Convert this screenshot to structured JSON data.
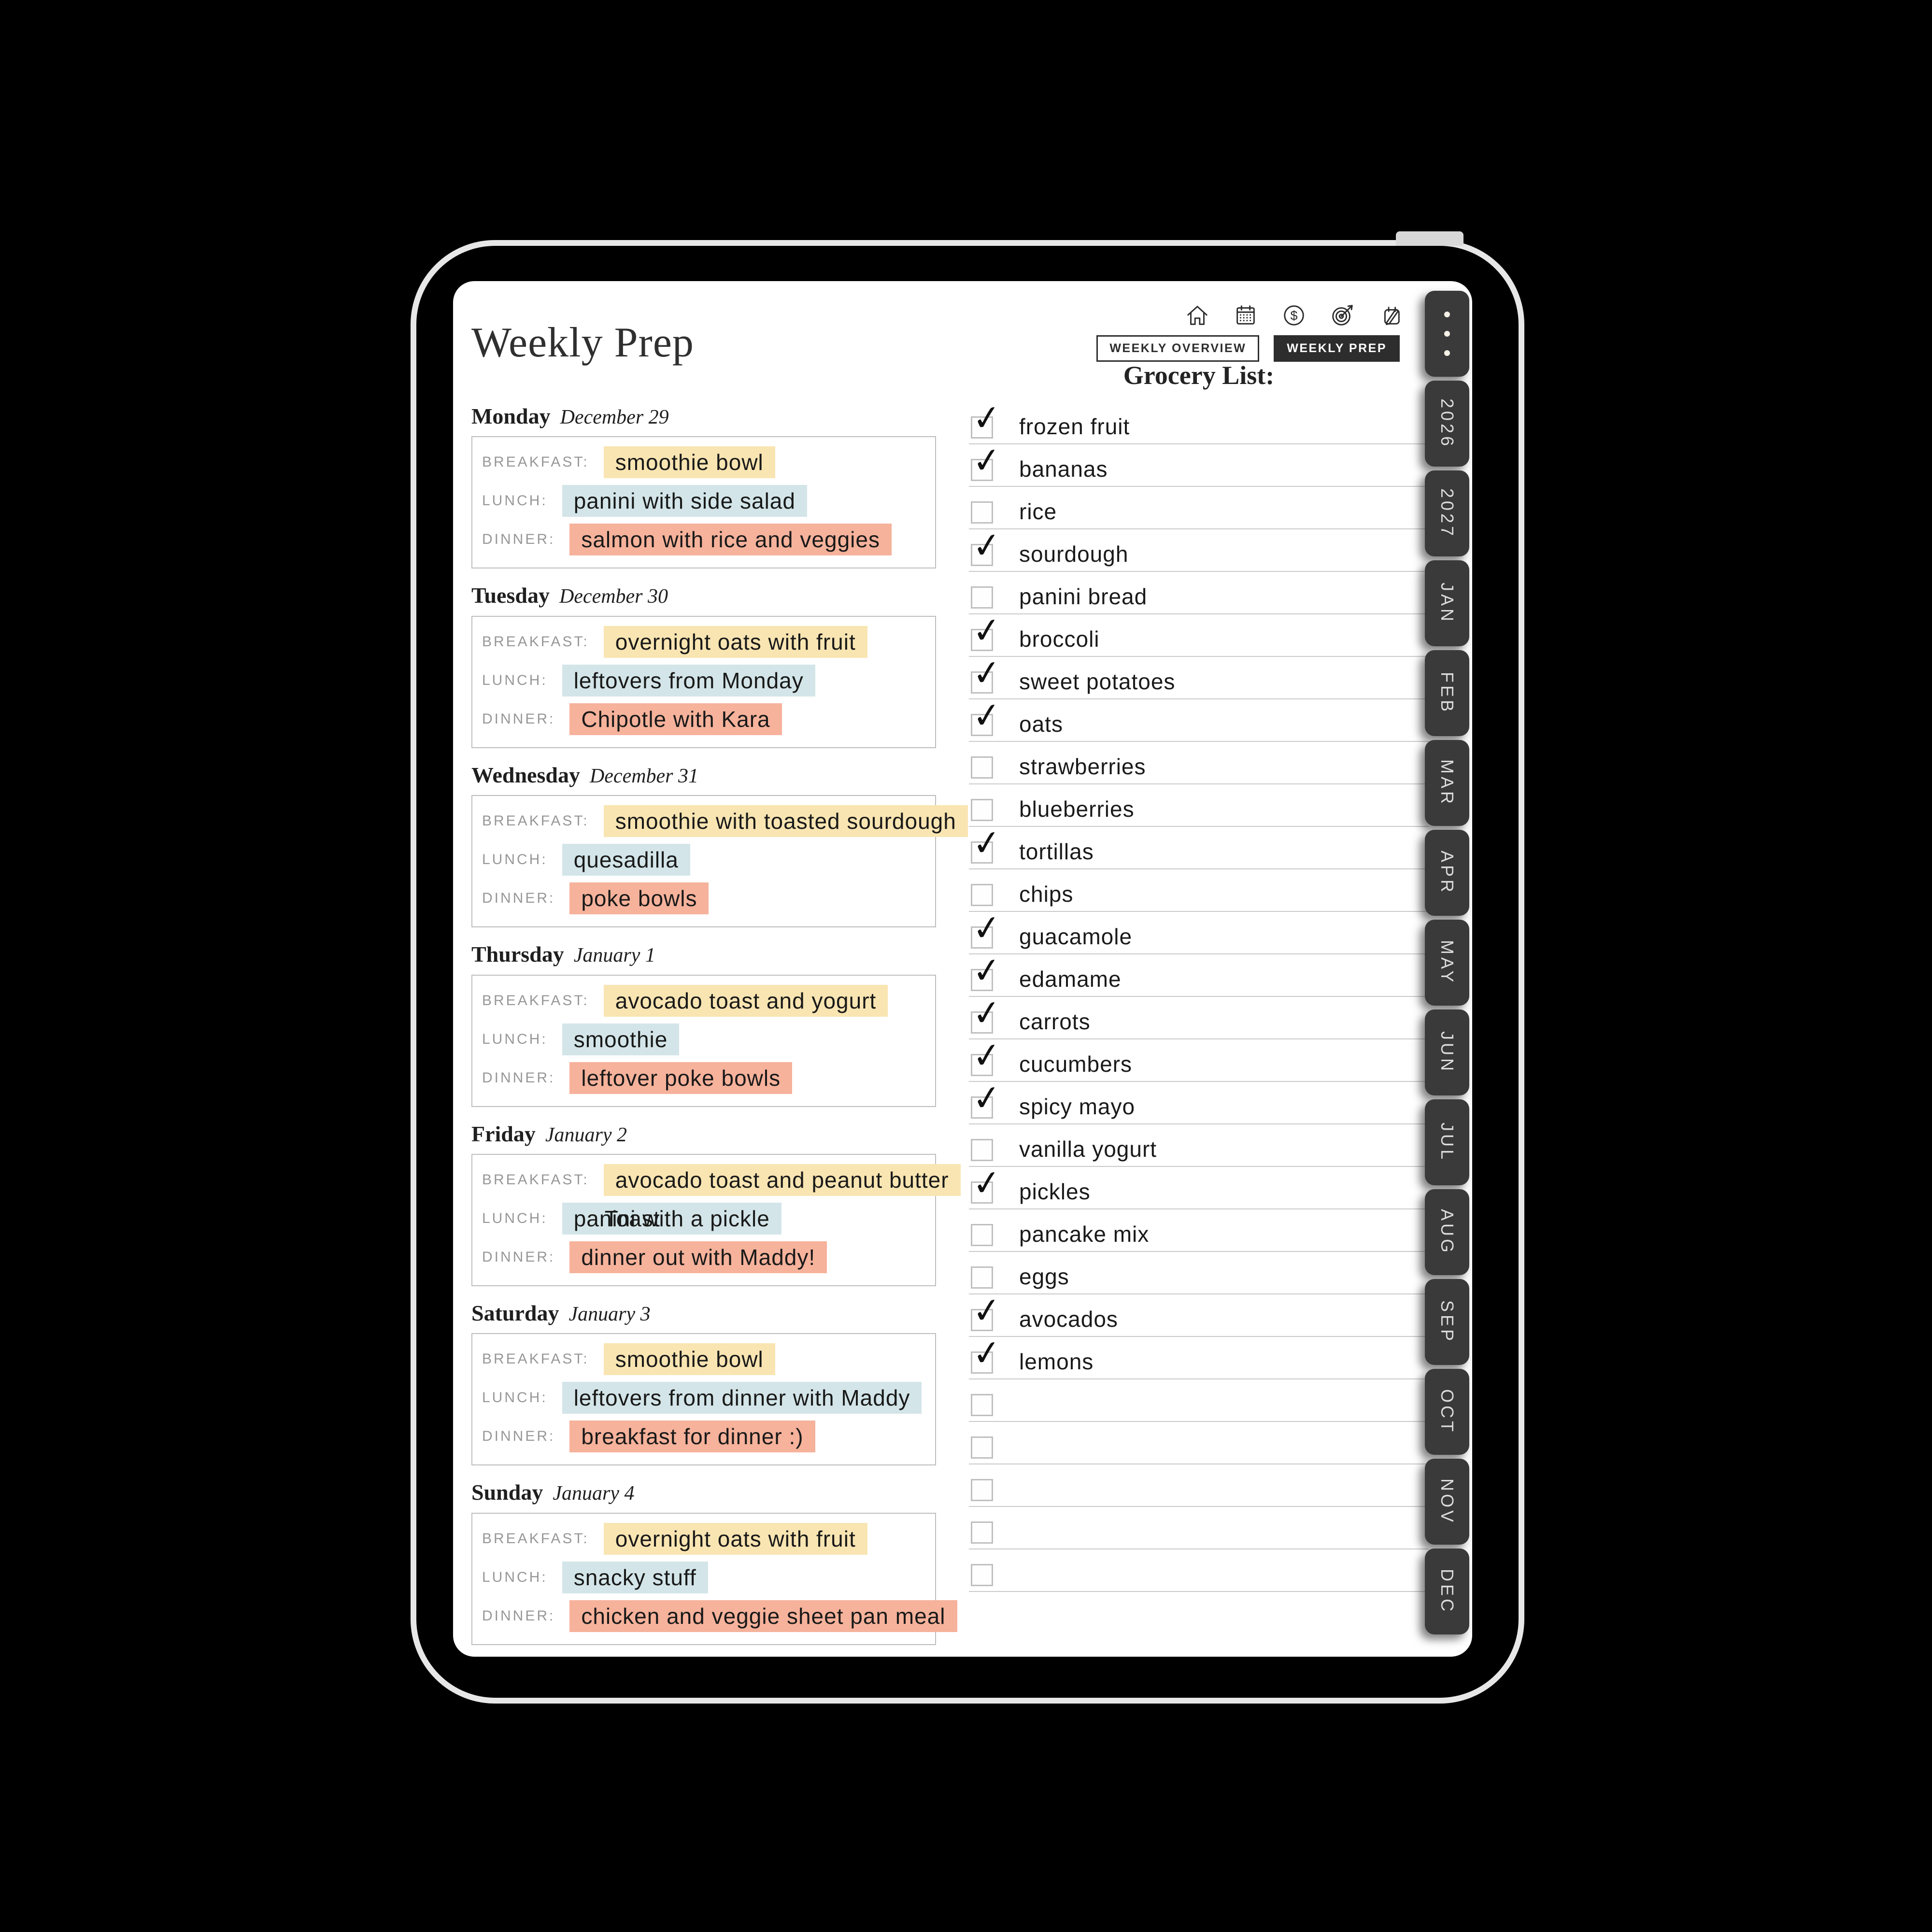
{
  "header": {
    "title": "Weekly Prep",
    "icons": [
      "home-icon",
      "calendar-icon",
      "dollar-icon",
      "target-icon",
      "journal-pen-icon"
    ],
    "tabs": [
      {
        "label": "WEEKLY OVERVIEW",
        "active": false
      },
      {
        "label": "WEEKLY PREP",
        "active": true
      }
    ]
  },
  "days": [
    {
      "name": "Monday",
      "date": "December 29",
      "meals": [
        {
          "label": "BREAKFAST:",
          "text": "smoothie bowl",
          "color": "yellow"
        },
        {
          "label": "LUNCH:",
          "text": "panini with side salad",
          "color": "blue"
        },
        {
          "label": "DINNER:",
          "text": "salmon with rice and veggies",
          "color": "salmon"
        }
      ]
    },
    {
      "name": "Tuesday",
      "date": "December 30",
      "meals": [
        {
          "label": "BREAKFAST:",
          "text": "overnight oats with fruit",
          "color": "yellow"
        },
        {
          "label": "LUNCH:",
          "text": "leftovers from Monday",
          "color": "blue"
        },
        {
          "label": "DINNER:",
          "text": "Chipotle with Kara",
          "color": "salmon"
        }
      ]
    },
    {
      "name": "Wednesday",
      "date": "December 31",
      "meals": [
        {
          "label": "BREAKFAST:",
          "text": "smoothie with toasted sourdough",
          "color": "yellow"
        },
        {
          "label": "LUNCH:",
          "text": "quesadilla",
          "color": "blue"
        },
        {
          "label": "DINNER:",
          "text": "poke bowls",
          "color": "salmon"
        }
      ]
    },
    {
      "name": "Thursday",
      "date": "January 1",
      "meals": [
        {
          "label": "BREAKFAST:",
          "text": "avocado toast and yogurt",
          "color": "yellow"
        },
        {
          "label": "LUNCH:",
          "text": "smoothie",
          "color": "blue"
        },
        {
          "label": "DINNER:",
          "text": "leftover poke bowls",
          "color": "salmon"
        }
      ]
    },
    {
      "name": "Friday",
      "date": "January 2",
      "meals": [
        {
          "label": "BREAKFAST:",
          "text": "avocado toast and peanut butter",
          "color": "yellow"
        },
        {
          "label": "LUNCH:",
          "text": "panini with a pickle",
          "color": "blue",
          "overlay": "Toast"
        },
        {
          "label": "DINNER:",
          "text": "dinner out with Maddy!",
          "color": "salmon"
        }
      ]
    },
    {
      "name": "Saturday",
      "date": "January 3",
      "meals": [
        {
          "label": "BREAKFAST:",
          "text": "smoothie bowl",
          "color": "yellow"
        },
        {
          "label": "LUNCH:",
          "text": "leftovers from dinner with Maddy",
          "color": "blue"
        },
        {
          "label": "DINNER:",
          "text": "breakfast for dinner :)",
          "color": "salmon"
        }
      ]
    },
    {
      "name": "Sunday",
      "date": "January 4",
      "meals": [
        {
          "label": "BREAKFAST:",
          "text": "overnight oats with fruit",
          "color": "yellow"
        },
        {
          "label": "LUNCH:",
          "text": "snacky stuff",
          "color": "blue"
        },
        {
          "label": "DINNER:",
          "text": "chicken and veggie sheet pan meal",
          "color": "salmon"
        }
      ]
    }
  ],
  "grocery": {
    "title": "Grocery List:",
    "items": [
      {
        "label": "frozen fruit",
        "checked": true
      },
      {
        "label": "bananas",
        "checked": true
      },
      {
        "label": "rice",
        "checked": false
      },
      {
        "label": "sourdough",
        "checked": true
      },
      {
        "label": "panini bread",
        "checked": false
      },
      {
        "label": "broccoli",
        "checked": true
      },
      {
        "label": "sweet potatoes",
        "checked": true
      },
      {
        "label": "oats",
        "checked": true
      },
      {
        "label": "strawberries",
        "checked": false
      },
      {
        "label": "blueberries",
        "checked": false
      },
      {
        "label": "tortillas",
        "checked": true
      },
      {
        "label": "chips",
        "checked": false
      },
      {
        "label": "guacamole",
        "checked": true
      },
      {
        "label": "edamame",
        "checked": true
      },
      {
        "label": "carrots",
        "checked": true
      },
      {
        "label": "cucumbers",
        "checked": true
      },
      {
        "label": "spicy mayo",
        "checked": true
      },
      {
        "label": "vanilla yogurt",
        "checked": false
      },
      {
        "label": "pickles",
        "checked": true
      },
      {
        "label": "pancake mix",
        "checked": false
      },
      {
        "label": "eggs",
        "checked": false
      },
      {
        "label": "avocados",
        "checked": true
      },
      {
        "label": "lemons",
        "checked": true
      },
      {
        "label": "",
        "checked": false
      },
      {
        "label": "",
        "checked": false
      },
      {
        "label": "",
        "checked": false
      },
      {
        "label": "",
        "checked": false
      },
      {
        "label": "",
        "checked": false
      }
    ],
    "checkmark_glyph": "✓"
  },
  "side_tabs": [
    {
      "label": "",
      "dots": true
    },
    {
      "label": "2026"
    },
    {
      "label": "2027"
    },
    {
      "label": "JAN"
    },
    {
      "label": "FEB"
    },
    {
      "label": "MAR"
    },
    {
      "label": "APR"
    },
    {
      "label": "MAY"
    },
    {
      "label": "JUN"
    },
    {
      "label": "JUL"
    },
    {
      "label": "AUG"
    },
    {
      "label": "SEP"
    },
    {
      "label": "OCT"
    },
    {
      "label": "NOV"
    },
    {
      "label": "DEC"
    }
  ],
  "colors": {
    "highlight_yellow": "#f9e5b2",
    "highlight_blue": "#d3e5e8",
    "highlight_salmon": "#f6b29b",
    "tab_dark": "#3a3a3a",
    "active_tab_bg": "#2d2d2d",
    "background": "#000000"
  }
}
